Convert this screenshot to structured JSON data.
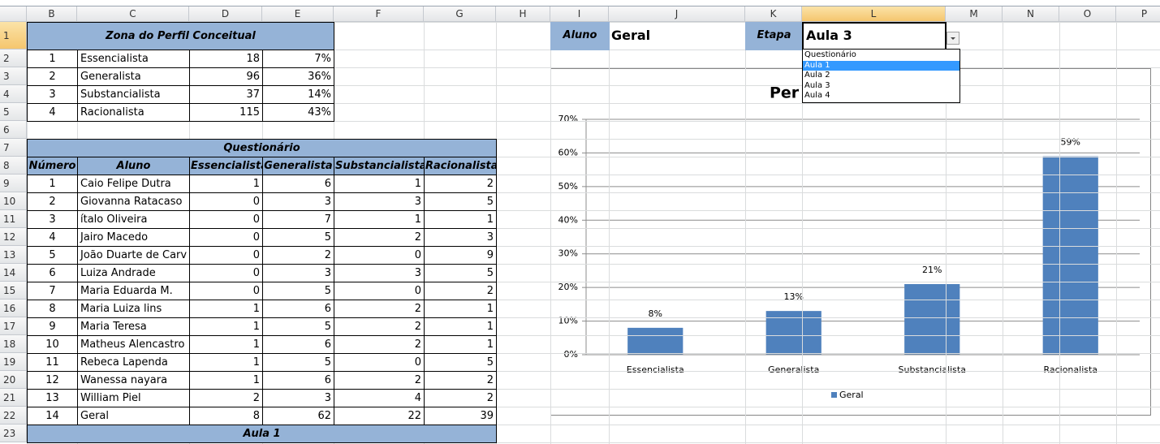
{
  "columns": [
    "B",
    "C",
    "D",
    "E",
    "F",
    "G",
    "H",
    "I",
    "J",
    "K",
    "L",
    "M",
    "N",
    "O",
    "P"
  ],
  "row_numbers": [
    1,
    2,
    3,
    4,
    5,
    6,
    7,
    8,
    9,
    10,
    11,
    12,
    13,
    14,
    15,
    16,
    17,
    18,
    19,
    20,
    21,
    22,
    23
  ],
  "summary": {
    "title": "Zona do Perfil Conceitual",
    "rows": [
      [
        1,
        "Essencialista",
        18,
        "7%"
      ],
      [
        2,
        "Generalista",
        96,
        "36%"
      ],
      [
        3,
        "Substancialista",
        37,
        "14%"
      ],
      [
        4,
        "Racionalista",
        115,
        "43%"
      ]
    ]
  },
  "questionario": {
    "title": "Questionário",
    "headers": [
      "Número",
      "Aluno",
      "Essencialista",
      "Generalista",
      "Substancialista",
      "Racionalista"
    ],
    "rows": [
      [
        1,
        "Caio Felipe Dutra",
        1,
        6,
        1,
        2
      ],
      [
        2,
        "Giovanna Ratacaso",
        0,
        3,
        3,
        5
      ],
      [
        3,
        "ítalo Oliveira",
        0,
        7,
        1,
        1
      ],
      [
        4,
        "Jairo Macedo",
        0,
        5,
        2,
        3
      ],
      [
        5,
        "João Duarte de Carv",
        0,
        2,
        0,
        9
      ],
      [
        6,
        "Luiza Andrade",
        0,
        3,
        3,
        5
      ],
      [
        7,
        "Maria Eduarda M.",
        0,
        5,
        0,
        2
      ],
      [
        8,
        "Maria Luiza lins",
        1,
        6,
        2,
        1
      ],
      [
        9,
        "Maria Teresa",
        1,
        5,
        2,
        1
      ],
      [
        10,
        "Matheus Alencastro",
        1,
        6,
        2,
        1
      ],
      [
        11,
        "Rebeca Lapenda",
        1,
        5,
        0,
        5
      ],
      [
        12,
        "Wanessa nayara",
        1,
        6,
        2,
        2
      ],
      [
        13,
        "William Piel",
        2,
        3,
        4,
        2
      ],
      [
        14,
        "Geral",
        8,
        62,
        22,
        39
      ]
    ]
  },
  "next_section": "Aula 1",
  "filters": {
    "aluno_label": "Aluno",
    "aluno": "Geral",
    "etapa_label": "Etapa",
    "etapa": "Aula 3",
    "options": [
      "Questionário",
      "Aula 1",
      "Aula 2",
      "Aula 3",
      "Aula 4"
    ],
    "highlighted_option": 1
  },
  "chart_data": {
    "type": "bar",
    "title": "Per",
    "categories": [
      "Essencialista",
      "Generalista",
      "Substancialista",
      "Racionalista"
    ],
    "series": [
      {
        "name": "Geral",
        "color": "#4f81bd",
        "values": [
          8,
          13,
          21,
          59
        ],
        "value_labels": [
          "8%",
          "13%",
          "21%",
          "59%"
        ]
      }
    ],
    "ylim": [
      0,
      70
    ],
    "yticks": [
      {
        "value": 0,
        "label": "0%"
      },
      {
        "value": 10,
        "label": "10%"
      },
      {
        "value": 20,
        "label": "20%"
      },
      {
        "value": 30,
        "label": "30%"
      },
      {
        "value": 40,
        "label": "40%"
      },
      {
        "value": 50,
        "label": "50%"
      },
      {
        "value": 60,
        "label": "60%"
      },
      {
        "value": 70,
        "label": "70%"
      }
    ],
    "grid": true,
    "legend": "bottom"
  }
}
